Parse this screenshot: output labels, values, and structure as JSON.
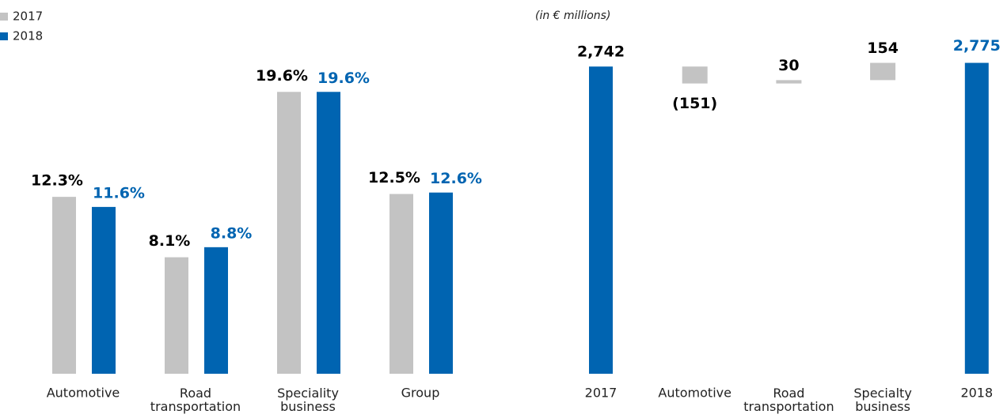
{
  "chart_data": [
    {
      "type": "bar",
      "categories": [
        "Automotive",
        "Road transportation",
        "Speciality business",
        "Group"
      ],
      "series": [
        {
          "name": "2017",
          "color": "#c3c3c3",
          "label_color": "#000000",
          "values": [
            12.3,
            8.1,
            19.6,
            12.5
          ],
          "value_labels": [
            "12.3%",
            "8.1%",
            "19.6%",
            "12.5%"
          ]
        },
        {
          "name": "2018",
          "color": "#0064b1",
          "label_color": "#0064b1",
          "values": [
            11.6,
            8.8,
            19.6,
            12.6
          ],
          "value_labels": [
            "11.6%",
            "8.8%",
            "19.6%",
            "12.6%"
          ]
        }
      ],
      "ylim": [
        0,
        20
      ],
      "legend": "top-left"
    },
    {
      "type": "waterfall",
      "subtitle": "(in € millions)",
      "categories": [
        "2017",
        "Automotive",
        "Road transportation",
        "Specialty business",
        "2018"
      ],
      "values": [
        2742,
        -151,
        30,
        154,
        2775
      ],
      "value_labels": [
        "2,742",
        "(151)",
        "30",
        "154",
        "2,775"
      ],
      "totals": [
        true,
        false,
        false,
        false,
        true
      ],
      "colors": [
        "#0064b1",
        "#c3c3c3",
        "#c3c3c3",
        "#c3c3c3",
        "#0064b1"
      ],
      "label_colors": [
        "#000000",
        "#000000",
        "#000000",
        "#000000",
        "#0064b1"
      ],
      "ylim": [
        0,
        2800
      ]
    }
  ]
}
